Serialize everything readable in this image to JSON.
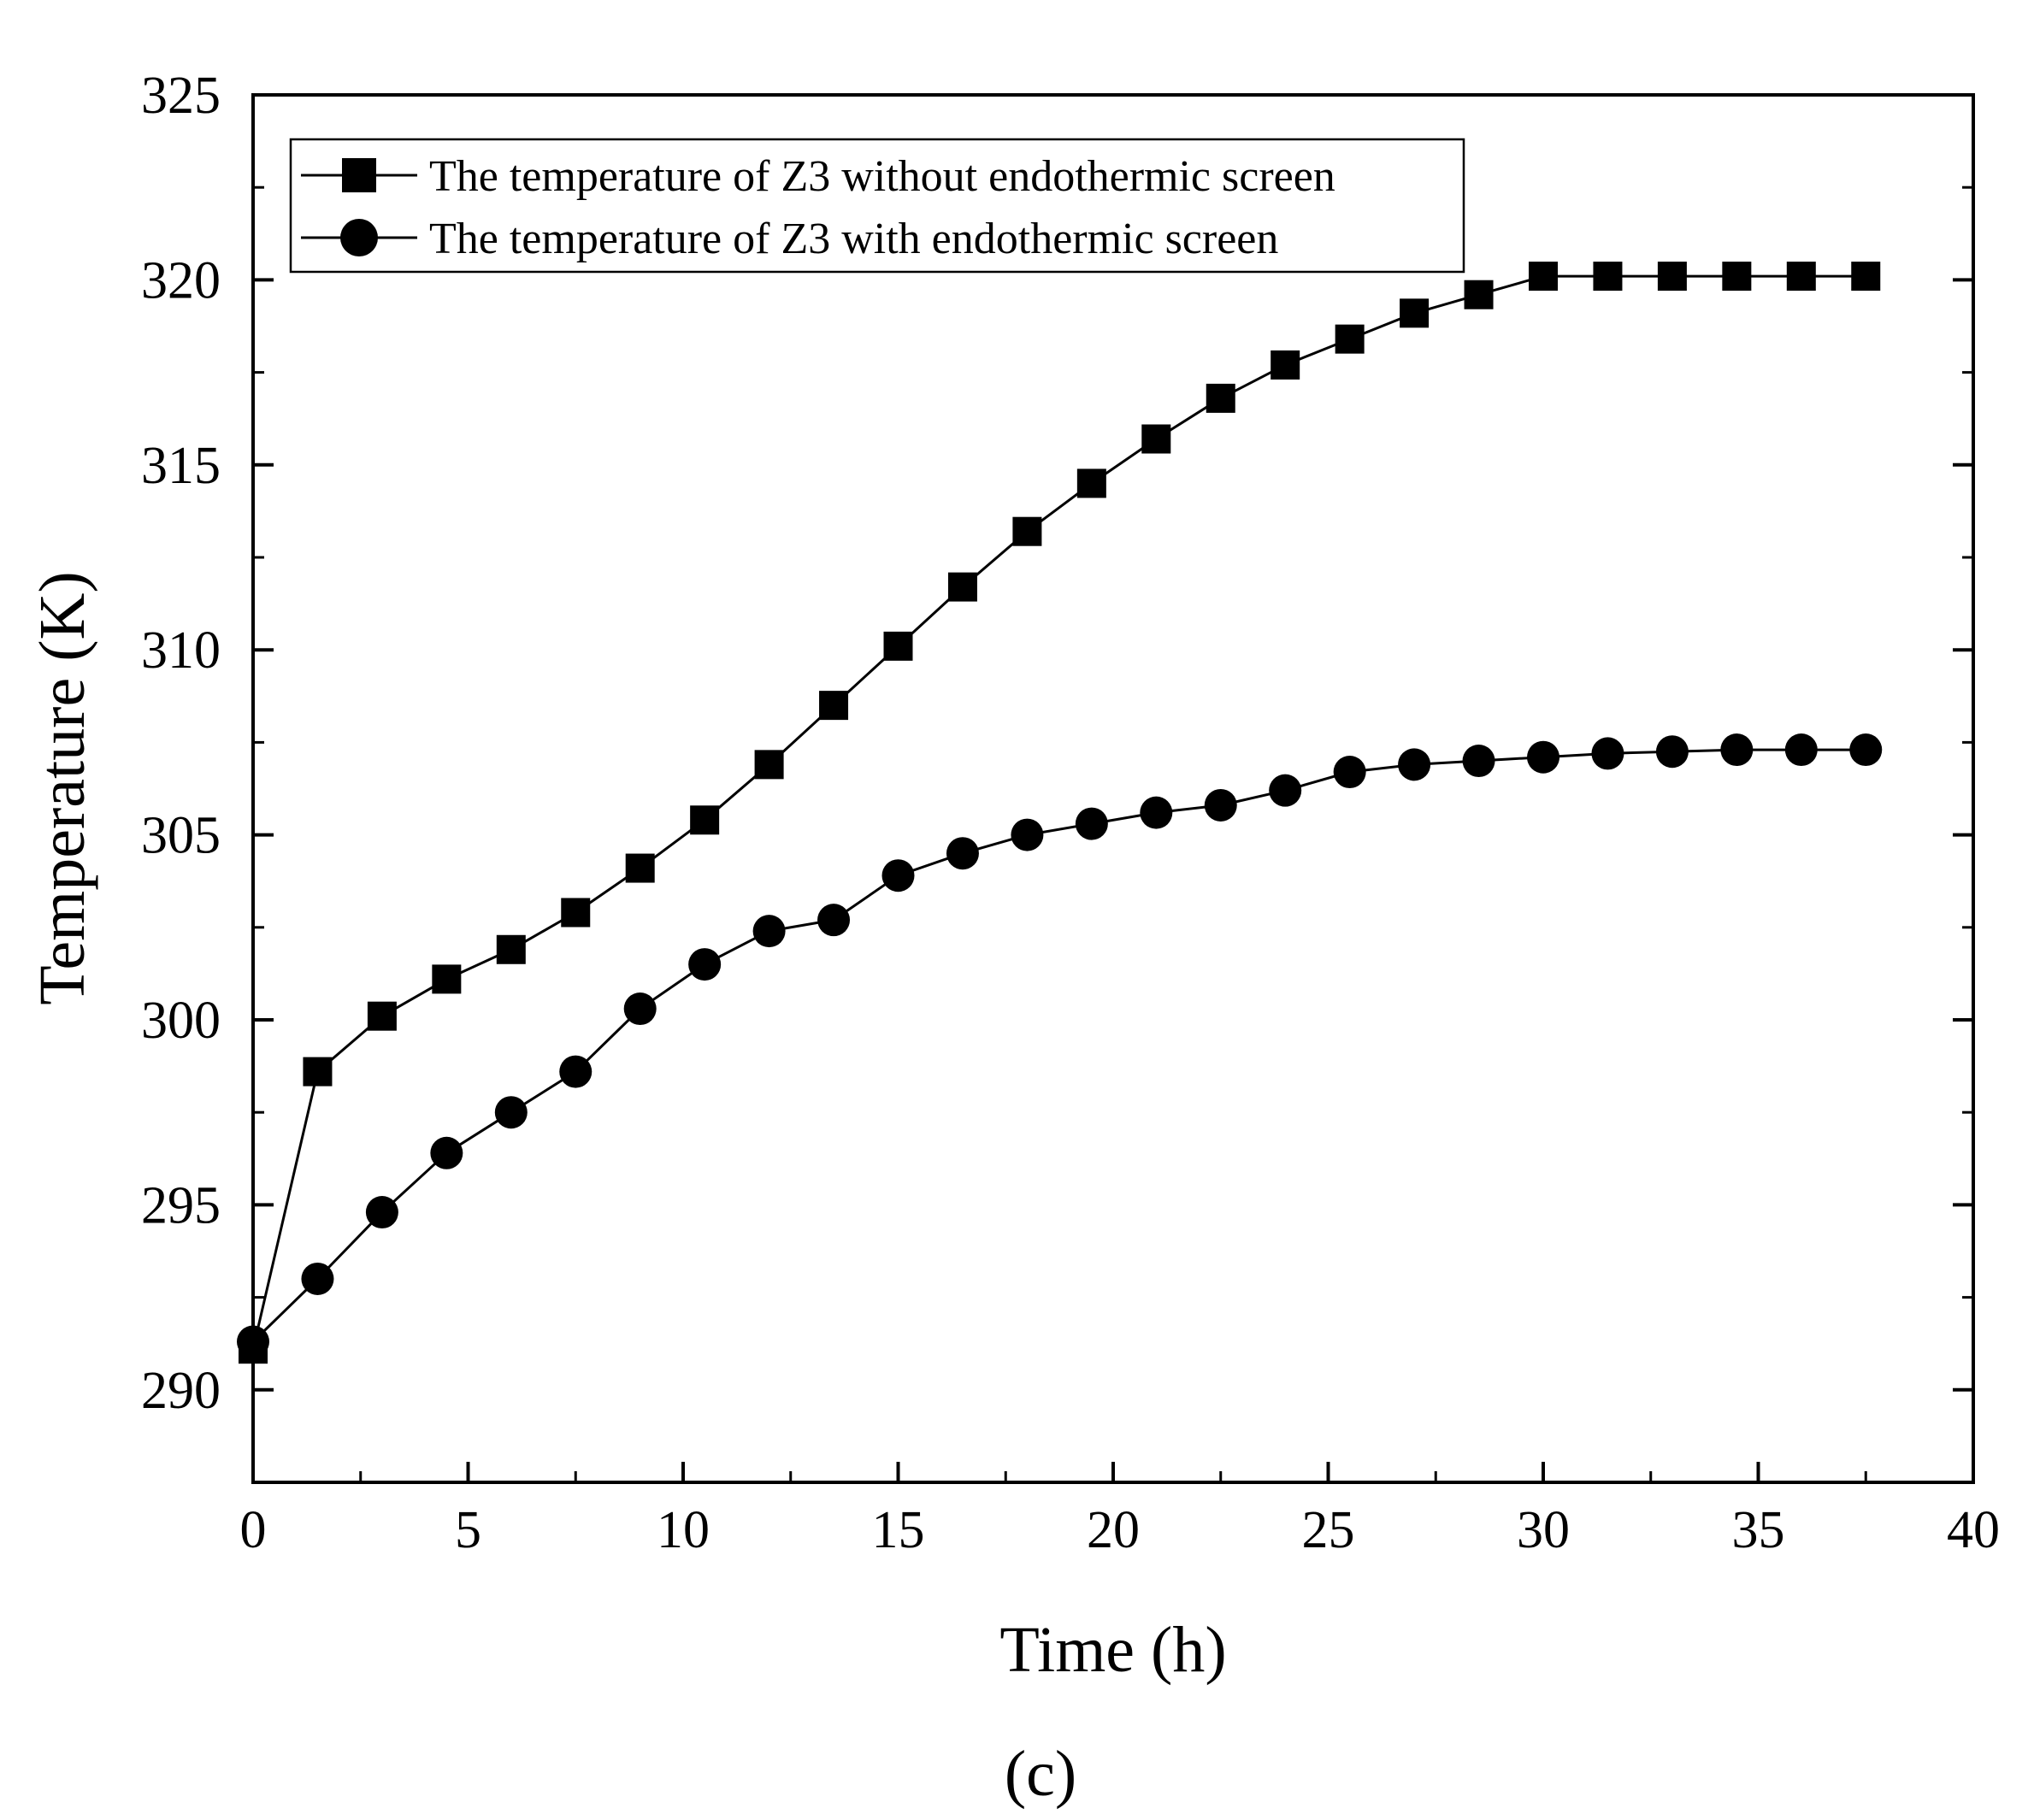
{
  "chart_data": {
    "type": "line",
    "title": "",
    "xlabel": "Time (h)",
    "ylabel": "Temperature (K)",
    "xlim": [
      0,
      40
    ],
    "ylim": [
      287.5,
      325
    ],
    "x_ticks": [
      0,
      5,
      10,
      15,
      20,
      25,
      30,
      35,
      40
    ],
    "x_tick_labels": [
      "0",
      "5",
      "10",
      "15",
      "20",
      "25",
      "30",
      "35",
      "40"
    ],
    "y_ticks": [
      290,
      295,
      300,
      305,
      310,
      315,
      320,
      325
    ],
    "y_tick_labels": [
      "290",
      "295",
      "300",
      "305",
      "310",
      "315",
      "320",
      "325"
    ],
    "grid": false,
    "legend_position": "top-left",
    "series": [
      {
        "name": "The temperature of Z3 without endothermic screen",
        "marker": "square",
        "x": [
          0,
          1.5,
          3,
          4.5,
          6,
          7.5,
          9,
          10.5,
          12,
          13.5,
          15,
          16.5,
          18,
          19.5,
          21,
          22.5,
          24,
          25.5,
          27,
          28.5,
          30,
          31.5,
          33,
          34.5,
          36,
          37.5
        ],
        "values": [
          291.1,
          298.6,
          300.1,
          301.1,
          301.9,
          302.9,
          304.1,
          305.4,
          306.9,
          308.5,
          310.1,
          311.7,
          313.2,
          314.5,
          315.7,
          316.8,
          317.7,
          318.4,
          319.1,
          319.6,
          320.1,
          320.1,
          320.1,
          320.1,
          320.1,
          320.1
        ]
      },
      {
        "name": "The temperature of Z3 with endothermic screen",
        "marker": "circle",
        "x": [
          0,
          1.5,
          3,
          4.5,
          6,
          7.5,
          9,
          10.5,
          12,
          13.5,
          15,
          16.5,
          18,
          19.5,
          21,
          22.5,
          24,
          25.5,
          27,
          28.5,
          30,
          31.5,
          33,
          34.5,
          36,
          37.5
        ],
        "values": [
          291.3,
          293.0,
          294.8,
          296.4,
          297.5,
          298.6,
          300.3,
          301.5,
          302.4,
          302.7,
          303.9,
          304.5,
          305.0,
          305.3,
          305.6,
          305.8,
          306.2,
          306.7,
          306.9,
          307.0,
          307.1,
          307.2,
          307.25,
          307.3,
          307.3,
          307.3
        ]
      }
    ]
  },
  "figure": {
    "panel_label": "(c)"
  }
}
